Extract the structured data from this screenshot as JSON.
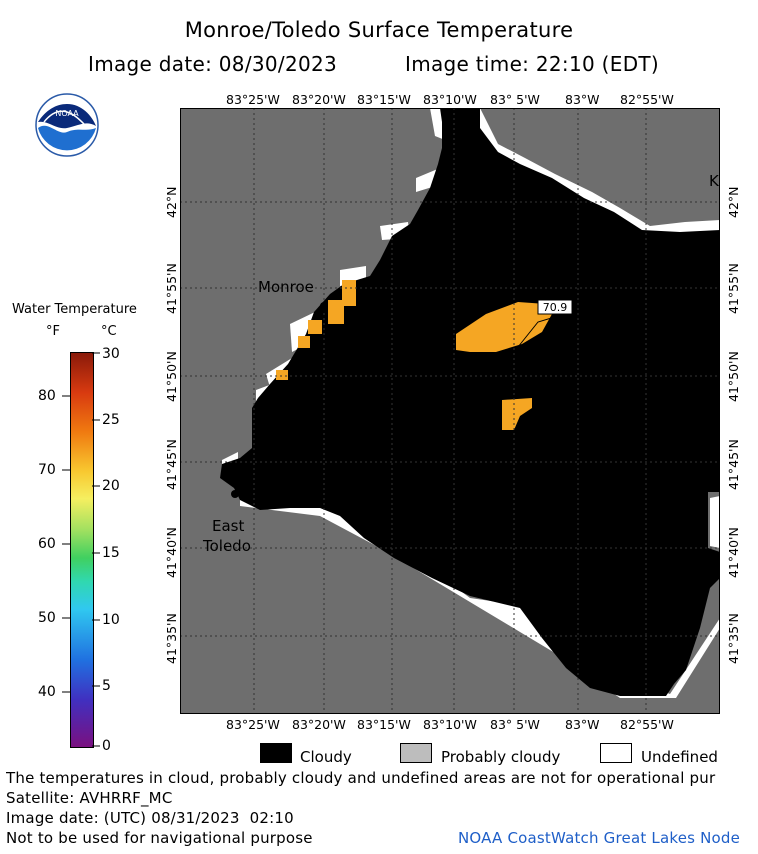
{
  "header": {
    "title": "Monroe/Toledo Surface Temperature",
    "image_date": "Image date: 08/30/2023",
    "image_time": "Image time: 22:10 (EDT)"
  },
  "logo": {
    "text": "NOAA"
  },
  "colorbar": {
    "title": "Water Temperature",
    "unit_f": "°F",
    "unit_c": "°C",
    "f_ticks": [
      "80",
      "70",
      "60",
      "50",
      "40"
    ],
    "c_ticks": [
      "30",
      "25",
      "20",
      "15",
      "10",
      "5",
      "0"
    ]
  },
  "map": {
    "lon_labels": [
      "83°25'W",
      "83°20'W",
      "83°15'W",
      "83°10'W",
      "83° 5'W",
      "83°W",
      "82°55'W"
    ],
    "lat_labels": [
      "42°N",
      "41°55'N",
      "41°50'N",
      "41°45'N",
      "41°40'N",
      "41°35'N"
    ],
    "places": {
      "monroe": "Monroe",
      "east_toledo_1": "East",
      "east_toledo_2": "Toledo",
      "k": "K"
    },
    "point_value": "70.9",
    "colors": {
      "land": "#6e6e6e",
      "cloud": "#000000",
      "warm_water": "#f5a623",
      "undefined": "#ffffff"
    }
  },
  "legend": {
    "cloudy": "Cloudy",
    "probably_cloudy": "Probably cloudy",
    "undefined": "Undefined"
  },
  "footer": {
    "disclaimer": "The temperatures in cloud, probably cloudy and undefined areas are not for operational pur",
    "satellite": "Satellite: AVHRRF_MC",
    "utc_date": "Image date: (UTC) 08/31/2023  02:10",
    "nav_note": "Not to be used for navigational purpose",
    "credit": "NOAA CoastWatch Great Lakes Node"
  }
}
